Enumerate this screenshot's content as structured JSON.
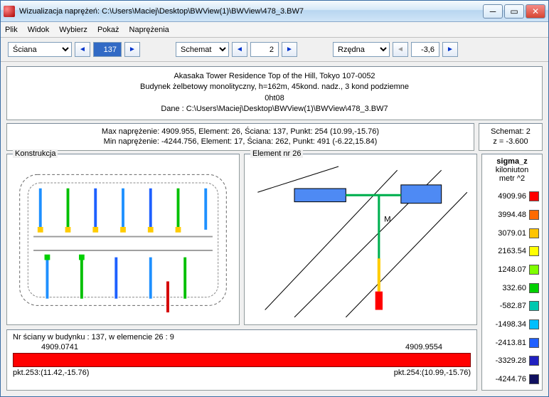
{
  "window": {
    "title": "Wizualizacja naprężeń: C:\\Users\\Maciej\\Desktop\\BWView(1)\\BWView\\478_3.BW7"
  },
  "menu": {
    "plik": "Plik",
    "widok": "Widok",
    "wybierz": "Wybierz",
    "pokaz": "Pokaż",
    "naprezenia": "Naprężenia"
  },
  "toolbar": {
    "sciana": {
      "label": "Ściana",
      "value": "137"
    },
    "schemat": {
      "label": "Schemat",
      "value": "2"
    },
    "rzedna": {
      "label": "Rzędna",
      "value": "-3,6"
    }
  },
  "header": {
    "l1": "Akasaka Tower Residence Top of the Hill, Tokyo 107-0052",
    "l2": "Budynek żelbetowy monolityczny, h=162m, 45kond. nadz., 3 kond podziemne",
    "l3": "0ht08",
    "l4": "Dane : C:\\Users\\Maciej\\Desktop\\BWView(1)\\BWView\\478_3.BW7"
  },
  "stats": {
    "max": "Max naprężenie: 4909.955,   Element: 26,   Ściana: 137,   Punkt: 254 (10.99,-15.76)",
    "min": "Min naprężenie: -4244.756,   Element: 17,   Ściana: 262,   Punkt: 491 (-6.22,15.84)"
  },
  "schematbox": {
    "l1": "Schemat: 2",
    "l2": "z = -3.600"
  },
  "panels": {
    "konstrukcja": "Konstrukcja",
    "element": "Element nr 26"
  },
  "footer": {
    "title": "Nr ściany w budynku :  137,   w elemencie 26 :  9",
    "barLeftVal": "4909.0741",
    "barRightVal": "4909.9554",
    "pktLeft": "pkt.253:(11.42,-15.76)",
    "pktRight": "pkt.254:(10.99,-15.76)"
  },
  "legend": {
    "title": "sigma_z",
    "unit": "kiloniuton\nmetr ^2",
    "items": [
      {
        "v": "4909.96",
        "c": "#ff0000"
      },
      {
        "v": "3994.48",
        "c": "#ff6a00"
      },
      {
        "v": "3079.01",
        "c": "#ffc400"
      },
      {
        "v": "2163.54",
        "c": "#ffff00"
      },
      {
        "v": "1248.07",
        "c": "#7fff00"
      },
      {
        "v": "332.60",
        "c": "#00d000"
      },
      {
        "v": "-582.87",
        "c": "#00c8b0"
      },
      {
        "v": "-1498.34",
        "c": "#00bfff"
      },
      {
        "v": "-2413.81",
        "c": "#2060ff"
      },
      {
        "v": "-3329.28",
        "c": "#2020c0"
      },
      {
        "v": "-4244.76",
        "c": "#101060"
      }
    ]
  }
}
